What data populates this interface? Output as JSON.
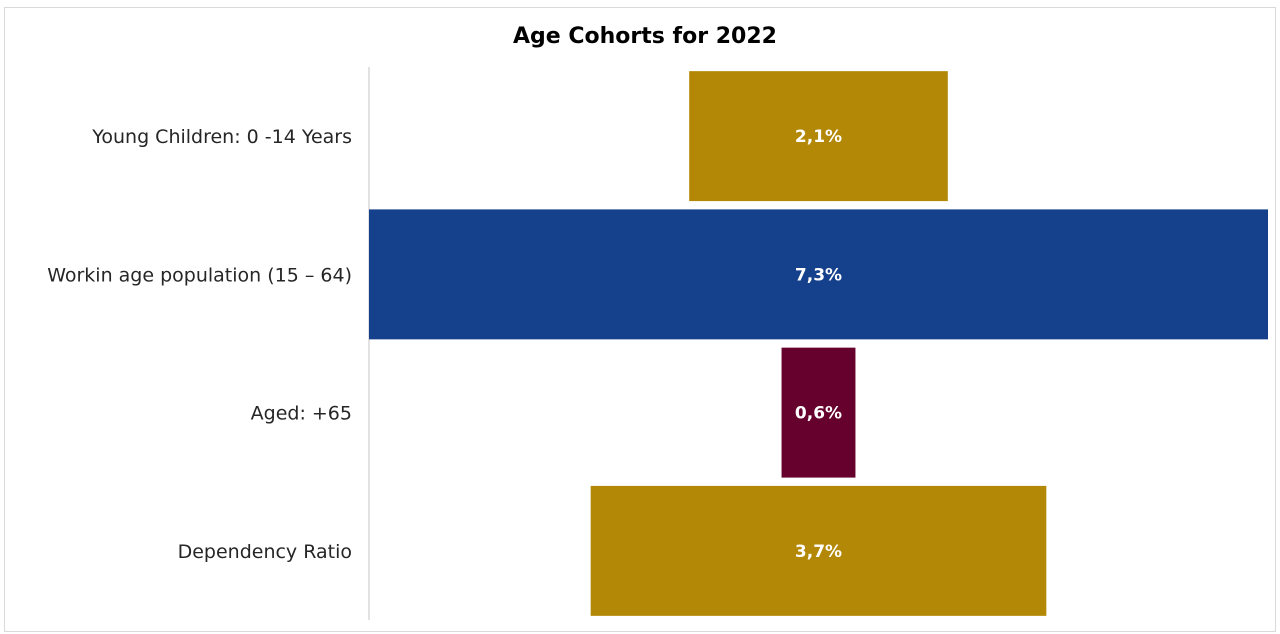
{
  "chart_data": {
    "type": "bar",
    "orientation": "horizontal",
    "title": "Age Cohorts for 2022",
    "xlabel": "",
    "ylabel": "",
    "grid": false,
    "legend": "none",
    "xlim": [
      -7.3,
      7.3
    ],
    "categories": [
      "Young Children: 0 -14 Years",
      "Workin age population (15 – 64)",
      "Aged: +65",
      "Dependency Ratio"
    ],
    "values": [
      2.1,
      7.3,
      0.6,
      3.7
    ],
    "data_labels": [
      "2,1%",
      "7,3%",
      "0,6%",
      "3,7%"
    ],
    "colors": [
      "#b38807",
      "#14408c",
      "#66002c",
      "#b38807"
    ]
  }
}
